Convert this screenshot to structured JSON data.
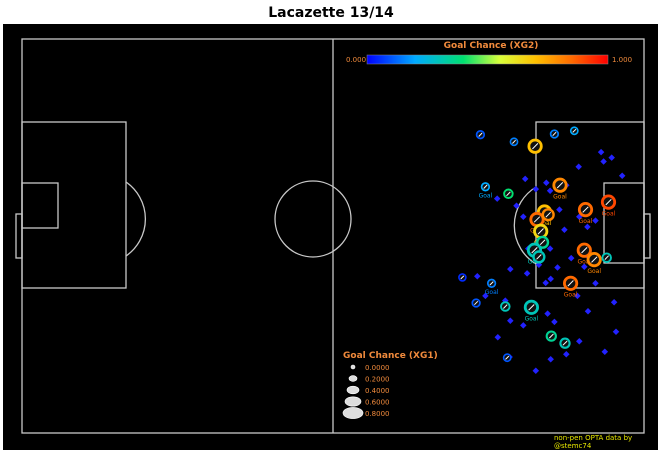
{
  "title": "Lacazette 13/14",
  "colorbar": {
    "title": "Goal Chance (XG2)",
    "min_label": "0.000",
    "max_label": "1.000",
    "title_color": "#f08a3c",
    "label_color": "#f08a3c"
  },
  "size_legend": {
    "title": "Goal Chance (XG1)",
    "entries": [
      "0.0000",
      "0.2000",
      "0.4000",
      "0.6000",
      "0.8000"
    ],
    "values": [
      0.0,
      0.2,
      0.4,
      0.6,
      0.8
    ],
    "title_color": "#f08a3c"
  },
  "credit_line1": "non-pen OPTA data by",
  "credit_line2": "@stemc74",
  "colors": {
    "page_bg": "#ffffff",
    "pitch_bg": "#000000",
    "pitch_lines": "#c8c8c8",
    "credit_text": "#e8e800",
    "miss_marker": "#2222ff"
  },
  "chart_data": {
    "type": "scatter",
    "description_units": "pitch coordinates: x 0-100 (left to right), y 0-100 (top to bottom)",
    "color_scale": "XG2 0 (blue) to 1 (red)",
    "size_scale": "XG1",
    "goal_label": "Goal",
    "misses": [
      [
        80.9,
        35.5
      ],
      [
        82.6,
        38.1
      ],
      [
        84.3,
        36.5
      ],
      [
        76.4,
        40.5
      ],
      [
        79.5,
        42.3
      ],
      [
        82.2,
        45.1
      ],
      [
        80.6,
        45.1
      ],
      [
        83.8,
        43.3
      ],
      [
        84.9,
        38.5
      ],
      [
        87.5,
        37.1
      ],
      [
        86.4,
        43.3
      ],
      [
        89.5,
        32.4
      ],
      [
        93.5,
        31.1
      ],
      [
        93.1,
        28.7
      ],
      [
        94.8,
        30.1
      ],
      [
        96.5,
        34.7
      ],
      [
        87.2,
        48.4
      ],
      [
        89.6,
        45.1
      ],
      [
        92.2,
        46.1
      ],
      [
        90.9,
        47.7
      ],
      [
        90.8,
        54.9
      ],
      [
        88.3,
        55.6
      ],
      [
        90.4,
        57.8
      ],
      [
        86.1,
        58.0
      ],
      [
        84.9,
        53.2
      ],
      [
        81.4,
        53.2
      ],
      [
        83.1,
        57.3
      ],
      [
        85.0,
        60.9
      ],
      [
        89.3,
        65.2
      ],
      [
        92.2,
        62.0
      ],
      [
        91.0,
        69.1
      ],
      [
        95.2,
        66.8
      ],
      [
        95.5,
        74.3
      ],
      [
        93.7,
        79.4
      ],
      [
        85.0,
        81.3
      ],
      [
        82.6,
        84.2
      ],
      [
        78.4,
        80.7
      ],
      [
        78.5,
        71.5
      ],
      [
        80.6,
        72.7
      ],
      [
        73.2,
        60.2
      ],
      [
        78.5,
        58.4
      ],
      [
        81.2,
        59.5
      ],
      [
        84.2,
        61.9
      ],
      [
        77.7,
        66.4
      ],
      [
        76.5,
        75.7
      ],
      [
        74.5,
        65.2
      ],
      [
        84.5,
        69.7
      ],
      [
        89.6,
        76.7
      ],
      [
        87.5,
        80.0
      ],
      [
        85.6,
        71.8
      ]
    ],
    "shots": [
      {
        "x": 73.7,
        "y": 24.3,
        "xg1": 0.05,
        "xg2": 0.1,
        "goal": false
      },
      {
        "x": 79.1,
        "y": 26.1,
        "xg1": 0.04,
        "xg2": 0.15,
        "goal": false
      },
      {
        "x": 85.6,
        "y": 24.1,
        "xg1": 0.05,
        "xg2": 0.15,
        "goal": false
      },
      {
        "x": 88.8,
        "y": 23.3,
        "xg1": 0.04,
        "xg2": 0.2,
        "goal": false
      },
      {
        "x": 82.5,
        "y": 27.2,
        "xg1": 0.2,
        "xg2": 0.7,
        "goal": false
      },
      {
        "x": 78.2,
        "y": 39.3,
        "xg1": 0.08,
        "xg2": 0.4,
        "goal": false
      },
      {
        "x": 74.5,
        "y": 37.5,
        "xg1": 0.05,
        "xg2": 0.2,
        "goal": true
      },
      {
        "x": 86.5,
        "y": 37.1,
        "xg1": 0.2,
        "xg2": 0.8,
        "goal": true
      },
      {
        "x": 84.0,
        "y": 43.9,
        "xg1": 0.2,
        "xg2": 0.7,
        "goal": true
      },
      {
        "x": 82.8,
        "y": 45.8,
        "xg1": 0.2,
        "xg2": 0.85,
        "goal": true
      },
      {
        "x": 84.6,
        "y": 44.6,
        "xg1": 0.15,
        "xg2": 0.8,
        "goal": false
      },
      {
        "x": 83.4,
        "y": 48.8,
        "xg1": 0.2,
        "xg2": 0.65,
        "goal": true
      },
      {
        "x": 90.6,
        "y": 43.3,
        "xg1": 0.2,
        "xg2": 0.85,
        "goal": true
      },
      {
        "x": 94.3,
        "y": 41.4,
        "xg1": 0.2,
        "xg2": 0.9,
        "goal": true
      },
      {
        "x": 83.7,
        "y": 51.6,
        "xg1": 0.15,
        "xg2": 0.35,
        "goal": false
      },
      {
        "x": 82.4,
        "y": 53.6,
        "xg1": 0.2,
        "xg2": 0.3,
        "goal": true
      },
      {
        "x": 83.1,
        "y": 55.3,
        "xg1": 0.15,
        "xg2": 0.3,
        "goal": false
      },
      {
        "x": 90.4,
        "y": 53.6,
        "xg1": 0.2,
        "xg2": 0.85,
        "goal": true
      },
      {
        "x": 92.0,
        "y": 56.0,
        "xg1": 0.2,
        "xg2": 0.8,
        "goal": true
      },
      {
        "x": 94.0,
        "y": 55.5,
        "xg1": 0.08,
        "xg2": 0.3,
        "goal": false
      },
      {
        "x": 88.2,
        "y": 62.0,
        "xg1": 0.2,
        "xg2": 0.85,
        "goal": true
      },
      {
        "x": 70.8,
        "y": 60.5,
        "xg1": 0.03,
        "xg2": 0.05,
        "goal": false
      },
      {
        "x": 75.5,
        "y": 62.0,
        "xg1": 0.05,
        "xg2": 0.15,
        "goal": true
      },
      {
        "x": 73.0,
        "y": 67.0,
        "xg1": 0.05,
        "xg2": 0.1,
        "goal": false
      },
      {
        "x": 77.7,
        "y": 67.9,
        "xg1": 0.08,
        "xg2": 0.3,
        "goal": false
      },
      {
        "x": 81.9,
        "y": 68.1,
        "xg1": 0.2,
        "xg2": 0.3,
        "goal": true
      },
      {
        "x": 85.1,
        "y": 75.4,
        "xg1": 0.1,
        "xg2": 0.35,
        "goal": false
      },
      {
        "x": 87.3,
        "y": 77.2,
        "xg1": 0.1,
        "xg2": 0.3,
        "goal": false
      },
      {
        "x": 78.0,
        "y": 80.9,
        "xg1": 0.04,
        "xg2": 0.1,
        "goal": false
      }
    ],
    "size_legend": {
      "title": "Goal Chance (XG1)",
      "values": [
        0.0,
        0.2,
        0.4,
        0.6,
        0.8
      ]
    },
    "colorbar": {
      "title": "Goal Chance (XG2)",
      "range": [
        0.0,
        1.0
      ]
    }
  }
}
